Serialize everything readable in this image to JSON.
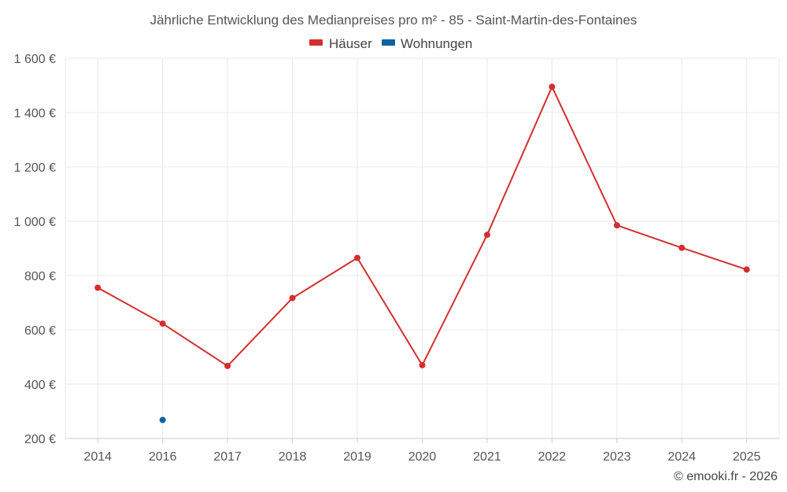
{
  "chart_data": {
    "type": "line",
    "title": "Jährliche Entwicklung des Medianpreises pro m² - 85 - Saint-Martin-des-Fontaines",
    "categories": [
      "2014",
      "2016",
      "2017",
      "2018",
      "2019",
      "2020",
      "2021",
      "2022",
      "2023",
      "2024",
      "2025"
    ],
    "series": [
      {
        "name": "Häuser",
        "color": "#d32f2f",
        "values": [
          755,
          623,
          467,
          717,
          865,
          470,
          950,
          1495,
          985,
          902,
          822
        ]
      },
      {
        "name": "Wohnungen",
        "color": "#0d63a0",
        "values": [
          null,
          268,
          null,
          null,
          null,
          null,
          null,
          null,
          null,
          null,
          null
        ]
      }
    ],
    "ylim": [
      200,
      1600
    ],
    "yticks": [
      200,
      400,
      600,
      800,
      1000,
      1200,
      1400,
      1600
    ],
    "ytick_labels": [
      "200 €",
      "400 €",
      "600 €",
      "800 €",
      "1 000 €",
      "1 200 €",
      "1 400 €",
      "1 600 €"
    ],
    "xlabel": "",
    "ylabel": "",
    "grid": true,
    "legend_position": "top-center"
  },
  "footer": {
    "credit": "© emooki.fr - 2026"
  }
}
